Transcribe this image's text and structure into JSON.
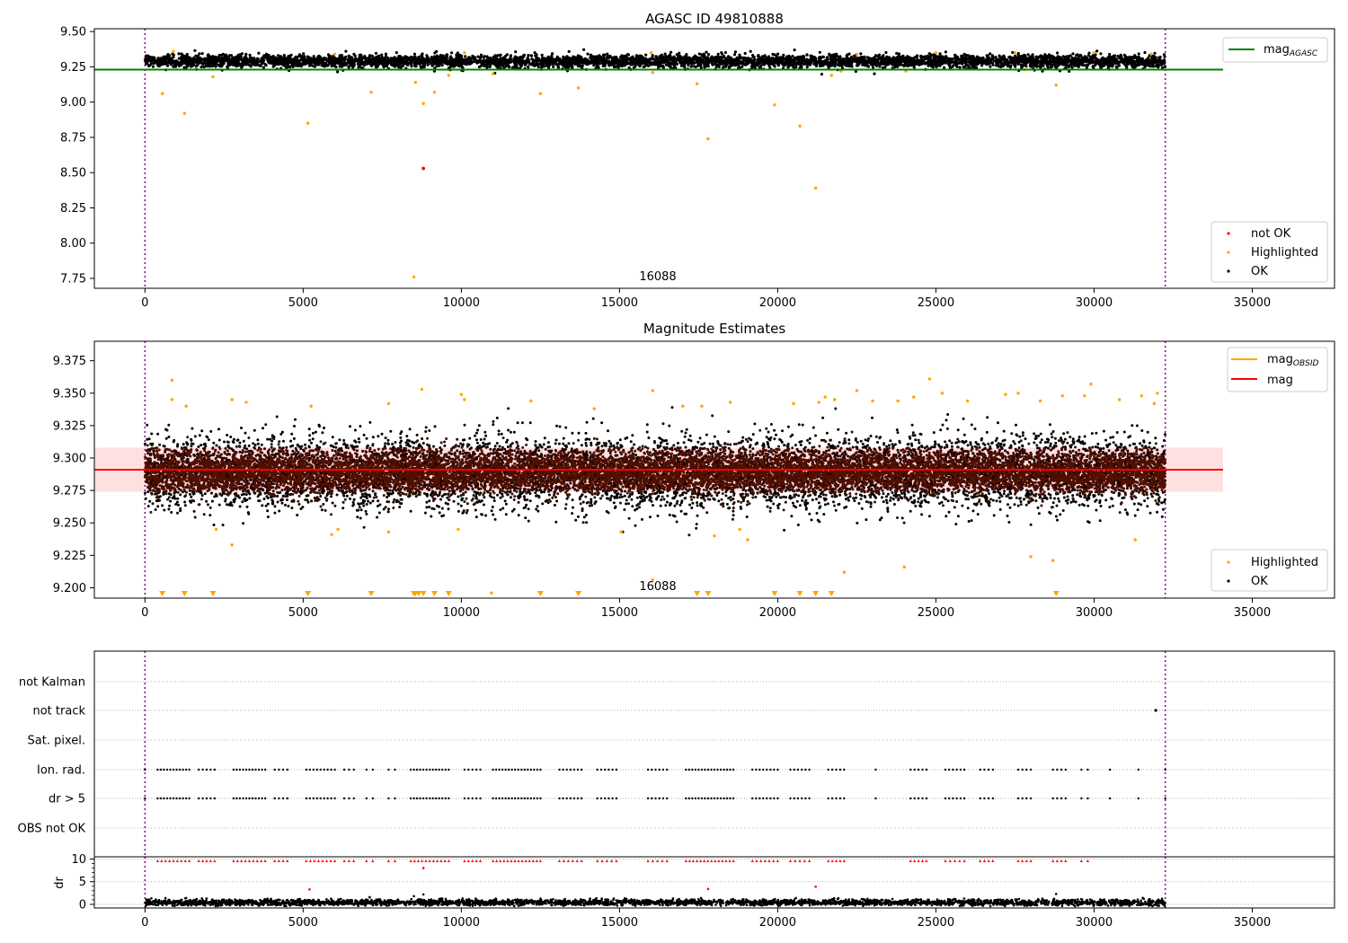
{
  "chart_data": [
    {
      "type": "scatter",
      "title": "AGASC ID 49810888",
      "ylim": [
        7.68,
        9.52
      ],
      "xlim": [
        -1600,
        37600
      ],
      "yticks": [
        "9.50",
        "9.25",
        "9.00",
        "8.75",
        "8.50",
        "8.25",
        "8.00",
        "7.75"
      ],
      "ytick_values": [
        9.5,
        9.25,
        9.0,
        8.75,
        8.5,
        8.25,
        8.0,
        7.75
      ],
      "xticks": [
        "0",
        "5000",
        "10000",
        "15000",
        "20000",
        "25000",
        "30000",
        "35000"
      ],
      "xtick_values": [
        0,
        5000,
        10000,
        15000,
        20000,
        25000,
        30000,
        35000
      ],
      "vlines": [
        0,
        32250
      ],
      "mag_agasc": 9.23,
      "annotation": "16088",
      "legend_line": {
        "label": "mag",
        "subscript": "AGASC",
        "color": "#008000"
      },
      "legend_points": [
        {
          "label": "not OK",
          "color": "#ff0000"
        },
        {
          "label": "Highlighted",
          "color": "#ffa500"
        },
        {
          "label": "OK",
          "color": "#000000"
        }
      ],
      "ok_band": {
        "center": 9.29,
        "spread": 0.022,
        "x_end": 32250
      },
      "highlighted_points": [
        [
          550,
          9.06
        ],
        [
          1250,
          8.92
        ],
        [
          2150,
          9.18
        ],
        [
          5150,
          8.85
        ],
        [
          7150,
          9.07
        ],
        [
          8550,
          9.14
        ],
        [
          8500,
          7.76
        ],
        [
          8800,
          8.99
        ],
        [
          9150,
          9.07
        ],
        [
          9600,
          9.19
        ],
        [
          11000,
          9.2
        ],
        [
          12500,
          9.06
        ],
        [
          13700,
          9.1
        ],
        [
          16050,
          9.21
        ],
        [
          17450,
          9.13
        ],
        [
          17800,
          8.74
        ],
        [
          19900,
          8.98
        ],
        [
          20700,
          8.83
        ],
        [
          21200,
          8.39
        ],
        [
          21700,
          9.19
        ],
        [
          22000,
          9.22
        ],
        [
          24050,
          9.22
        ],
        [
          27800,
          9.23
        ],
        [
          28800,
          9.12
        ],
        [
          900,
          9.36
        ],
        [
          6000,
          9.34
        ],
        [
          10100,
          9.35
        ],
        [
          16000,
          9.35
        ],
        [
          22500,
          9.34
        ],
        [
          25000,
          9.35
        ],
        [
          27500,
          9.35
        ],
        [
          30000,
          9.35
        ],
        [
          31800,
          9.34
        ]
      ],
      "not_ok_points": [
        [
          8800,
          8.53
        ]
      ]
    },
    {
      "type": "scatter",
      "title": "Magnitude Estimates",
      "ylim": [
        9.192,
        9.39
      ],
      "xlim": [
        -1600,
        37600
      ],
      "yticks": [
        "9.375",
        "9.350",
        "9.325",
        "9.300",
        "9.275",
        "9.250",
        "9.225",
        "9.200"
      ],
      "ytick_values": [
        9.375,
        9.35,
        9.325,
        9.3,
        9.275,
        9.25,
        9.225,
        9.2
      ],
      "xticks": [
        "0",
        "5000",
        "10000",
        "15000",
        "20000",
        "25000",
        "30000",
        "35000"
      ],
      "xtick_values": [
        0,
        5000,
        10000,
        15000,
        20000,
        25000,
        30000,
        35000
      ],
      "vlines": [
        0,
        32250
      ],
      "mag_line": 9.291,
      "mag_band": [
        9.274,
        9.308
      ],
      "annotation": "16088",
      "legend_lines": [
        {
          "label": "mag",
          "subscript": "OBSID",
          "color": "#ffa500"
        },
        {
          "label": "mag",
          "subscript": "",
          "color": "#ff0000"
        }
      ],
      "legend_points": [
        {
          "label": "Highlighted",
          "color": "#ffa500"
        },
        {
          "label": "OK",
          "color": "#000000"
        }
      ],
      "ok_band": {
        "center": 9.289,
        "spread": 0.013,
        "x_end": 32250
      },
      "highlighted_points": [
        [
          850,
          9.36
        ],
        [
          850,
          9.345
        ],
        [
          1300,
          9.34
        ],
        [
          2250,
          9.245
        ],
        [
          2750,
          9.233
        ],
        [
          2750,
          9.345
        ],
        [
          3200,
          9.343
        ],
        [
          5250,
          9.34
        ],
        [
          5900,
          9.241
        ],
        [
          6100,
          9.245
        ],
        [
          7700,
          9.243
        ],
        [
          7700,
          9.342
        ],
        [
          8750,
          9.353
        ],
        [
          10000,
          9.349
        ],
        [
          10100,
          9.345
        ],
        [
          9900,
          9.245
        ],
        [
          10950,
          9.196
        ],
        [
          12200,
          9.344
        ],
        [
          14200,
          9.338
        ],
        [
          15050,
          9.243
        ],
        [
          16050,
          9.352
        ],
        [
          16050,
          9.206
        ],
        [
          17000,
          9.34
        ],
        [
          17600,
          9.34
        ],
        [
          18000,
          9.24
        ],
        [
          18500,
          9.343
        ],
        [
          18800,
          9.245
        ],
        [
          19050,
          9.237
        ],
        [
          20500,
          9.342
        ],
        [
          21300,
          9.343
        ],
        [
          21500,
          9.347
        ],
        [
          21800,
          9.345
        ],
        [
          22100,
          9.212
        ],
        [
          22500,
          9.352
        ],
        [
          23000,
          9.344
        ],
        [
          23800,
          9.344
        ],
        [
          24000,
          9.216
        ],
        [
          24300,
          9.347
        ],
        [
          24800,
          9.361
        ],
        [
          25200,
          9.35
        ],
        [
          26000,
          9.344
        ],
        [
          27200,
          9.349
        ],
        [
          27600,
          9.35
        ],
        [
          28000,
          9.224
        ],
        [
          28300,
          9.344
        ],
        [
          28700,
          9.221
        ],
        [
          29000,
          9.348
        ],
        [
          29700,
          9.348
        ],
        [
          29900,
          9.357
        ],
        [
          30800,
          9.345
        ],
        [
          31300,
          9.237
        ],
        [
          31500,
          9.348
        ],
        [
          31900,
          9.342
        ],
        [
          32000,
          9.35
        ]
      ],
      "below_range_x": [
        550,
        1250,
        2150,
        5150,
        7150,
        8500,
        8550,
        8650,
        8800,
        9150,
        9600,
        12500,
        13700,
        17450,
        17800,
        19900,
        20700,
        21200,
        21700,
        28800
      ]
    },
    {
      "type": "scatter",
      "title": "",
      "categories": [
        "not Kalman",
        "not track",
        "Sat. pixel.",
        "Ion. rad.",
        "dr > 5",
        "OBS not OK"
      ],
      "xlim": [
        -1600,
        37600
      ],
      "vlines": [
        0,
        32250
      ],
      "not_track_points": [
        31950
      ],
      "flag_x_ranges": [
        [
          400,
          1400
        ],
        [
          1700,
          2200
        ],
        [
          2800,
          3800
        ],
        [
          4100,
          4500
        ],
        [
          5100,
          6000
        ],
        [
          6300,
          6600
        ],
        [
          7000,
          7200
        ],
        [
          7700,
          7900
        ],
        [
          8400,
          9600
        ],
        [
          10100,
          10600
        ],
        [
          11000,
          12500
        ],
        [
          13100,
          13800
        ],
        [
          14300,
          14900
        ],
        [
          15900,
          16500
        ],
        [
          17100,
          18600
        ],
        [
          19200,
          20000
        ],
        [
          20400,
          21000
        ],
        [
          21600,
          22100
        ],
        [
          24200,
          24700
        ],
        [
          25300,
          25900
        ],
        [
          26400,
          26800
        ],
        [
          27600,
          28000
        ],
        [
          28700,
          29100
        ],
        [
          29600,
          29800
        ]
      ],
      "flag_single_x": [
        0,
        23100,
        30500,
        31400,
        32250
      ]
    },
    {
      "type": "scatter",
      "title": "",
      "ylabel": "dr",
      "ylim": [
        -0.8,
        10.5
      ],
      "yticks": [
        "10",
        "5",
        "0"
      ],
      "ytick_values": [
        10,
        5,
        0
      ],
      "xticks": [
        "0",
        "5000",
        "10000",
        "15000",
        "20000",
        "25000",
        "30000",
        "35000"
      ],
      "xtick_values": [
        0,
        5000,
        10000,
        15000,
        20000,
        25000,
        30000,
        35000
      ],
      "xlim": [
        -1600,
        37600
      ],
      "vlines": [
        0,
        32250
      ],
      "ok_band": {
        "center": 0.4,
        "spread": 0.35,
        "x_end": 32250
      },
      "red_clipped_y": 9.6,
      "red_points": [
        [
          8800,
          8.0
        ],
        [
          5200,
          3.3
        ],
        [
          17800,
          3.4
        ],
        [
          21200,
          3.9
        ]
      ],
      "black_outliers": [
        [
          8800,
          2.2
        ],
        [
          8500,
          1.8
        ],
        [
          28800,
          2.3
        ],
        [
          1300,
          1.4
        ],
        [
          7100,
          1.6
        ]
      ]
    }
  ]
}
